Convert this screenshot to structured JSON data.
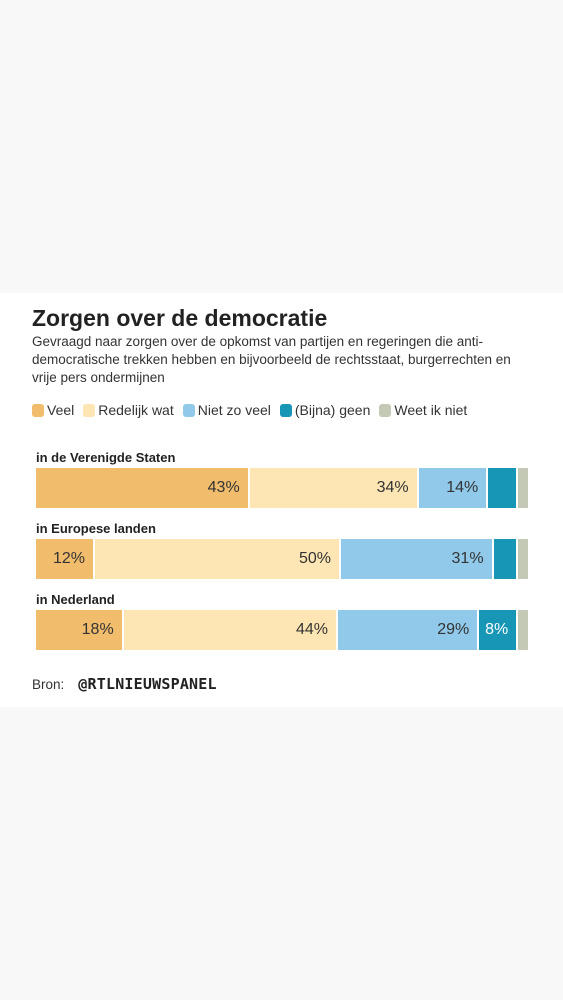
{
  "chart_data": {
    "type": "bar",
    "orientation": "horizontal",
    "stacked": true,
    "normalized": true,
    "title": "Zorgen over de democratie",
    "subtitle": "Gevraagd naar zorgen over de opkomst van partijen en regeringen die anti-democratische trekken hebben en bijvoorbeeld de rechtsstaat, burgerrechten en vrije pers ondermijnen",
    "legend_position": "top",
    "categories": [
      "in de Verenigde Staten",
      "in Europese landen",
      "in Nederland"
    ],
    "series": [
      {
        "name": "Veel",
        "color": "#f1bd6c",
        "values": [
          43,
          12,
          18
        ],
        "labels": [
          "43%",
          "12%",
          "18%"
        ]
      },
      {
        "name": "Redelijk wat",
        "color": "#fde6b4",
        "values": [
          34,
          50,
          44
        ],
        "labels": [
          "34%",
          "50%",
          "44%"
        ]
      },
      {
        "name": "Niet zo veel",
        "color": "#90c9ea",
        "values": [
          14,
          31,
          29
        ],
        "labels": [
          "14%",
          "31%",
          "29%"
        ]
      },
      {
        "name": "(Bijna) geen",
        "color": "#1896b5",
        "values": [
          6,
          5,
          8
        ],
        "labels": [
          "",
          "",
          "8%"
        ]
      },
      {
        "name": "Weet ik niet",
        "color": "#c4c9b6",
        "values": [
          2,
          2,
          2
        ],
        "labels": [
          "",
          "",
          ""
        ]
      }
    ],
    "source_label": "Bron:",
    "source_name": "@RTLNIEUWSPANEL"
  }
}
